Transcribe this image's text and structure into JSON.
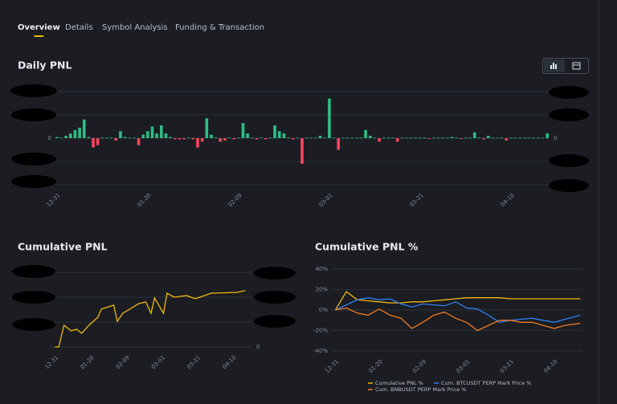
{
  "tabs": [
    "Overview",
    "Details",
    "Symbol Analysis",
    "Funding & Transaction"
  ],
  "active_tab": 0,
  "daily_pnl": {
    "type": "bar",
    "title": "Daily PNL",
    "color_up": "#2ebd85",
    "color_down": "#f6465d",
    "ylim": [
      -2,
      2
    ],
    "yticks": [
      0
    ],
    "categories": [
      "12-31",
      null,
      null,
      null,
      null,
      null,
      null,
      null,
      null,
      null,
      null,
      null,
      null,
      null,
      null,
      null,
      null,
      null,
      null,
      null,
      "01-20",
      null,
      null,
      null,
      null,
      null,
      null,
      null,
      null,
      null,
      null,
      null,
      null,
      null,
      null,
      null,
      null,
      null,
      null,
      null,
      "02-09",
      null,
      null,
      null,
      null,
      null,
      null,
      null,
      null,
      null,
      null,
      null,
      null,
      null,
      null,
      null,
      null,
      null,
      null,
      null,
      "03-01",
      null,
      null,
      null,
      null,
      null,
      null,
      null,
      null,
      null,
      null,
      null,
      null,
      null,
      null,
      null,
      null,
      null,
      null,
      null,
      "03-21",
      null,
      null,
      null,
      null,
      null,
      null,
      null,
      null,
      null,
      null,
      null,
      null,
      null,
      null,
      null,
      null,
      null,
      null,
      null,
      "04-10",
      null,
      null,
      null,
      null,
      null,
      null,
      null,
      null
    ],
    "values": [
      0.05,
      0.02,
      0.1,
      0.2,
      0.35,
      0.45,
      0.8,
      0.05,
      -0.4,
      -0.3,
      0.02,
      0.02,
      0.02,
      -0.1,
      0.3,
      0.05,
      0.02,
      0.02,
      -0.3,
      0.15,
      0.3,
      0.5,
      0.2,
      0.55,
      0.2,
      0.05,
      -0.05,
      -0.05,
      -0.05,
      0.02,
      -0.05,
      -0.4,
      -0.15,
      0.85,
      0.15,
      0.02,
      -0.15,
      -0.1,
      0.02,
      -0.05,
      0.02,
      0.65,
      0.2,
      0.02,
      -0.05,
      0.02,
      -0.05,
      0.02,
      0.55,
      0.3,
      0.2,
      0.02,
      -0.05,
      0.02,
      -1.1,
      0.02,
      0.02,
      0.02,
      0.1,
      0.02,
      1.7,
      0.02,
      -0.5,
      0.02,
      0.02,
      0.02,
      0.02,
      0.02,
      0.35,
      0.1,
      0.02,
      -0.15,
      0.02,
      0.02,
      0.02,
      -0.15,
      0.02,
      0.02,
      0.02,
      0.02,
      0.02,
      0.02,
      -0.03,
      0.02,
      0.02,
      0.02,
      0.02,
      0.05,
      0.02,
      -0.03,
      0.02,
      0.02,
      0.25,
      0.02,
      -0.05,
      0.1,
      0.02,
      0.02,
      0.02,
      -0.1,
      0.02,
      0.02,
      0.02,
      0.02,
      0.02,
      0.02,
      0.02,
      0.02,
      0.2
    ]
  },
  "cumulative_pnl": {
    "type": "line",
    "title": "Cumulative PNL",
    "xlim": [
      "12-28",
      "04-21"
    ],
    "xticks": [
      "12-31",
      "01-20",
      "02-09",
      "03-01",
      "03-21",
      "04-10"
    ],
    "ylim": [
      0,
      3
    ],
    "yticks": [
      0
    ],
    "x": [
      "12-31",
      "01-02",
      "01-05",
      "01-09",
      "01-12",
      "01-15",
      "01-19",
      "01-24",
      "01-26",
      "02-02",
      "02-04",
      "02-07",
      "02-11",
      "02-16",
      "02-20",
      "02-23",
      "02-25",
      "03-02",
      "03-04",
      "03-08",
      "03-15",
      "03-20",
      "03-29",
      "04-12",
      "04-17"
    ],
    "series": [
      {
        "color": "#f0b90b",
        "values": [
          0,
          0,
          0.87,
          0.65,
          0.71,
          0.55,
          0.87,
          1.19,
          1.52,
          1.68,
          1.03,
          1.35,
          1.52,
          1.74,
          1.81,
          1.35,
          1.97,
          1.35,
          2.16,
          2.0,
          2.06,
          1.94,
          2.16,
          2.19,
          2.26
        ]
      }
    ]
  },
  "cumulative_pnl_pct": {
    "type": "line",
    "title": "Cumulative PNL %",
    "xlim": [
      "12-29",
      "04-23"
    ],
    "xticks": [
      "12-31",
      "01-20",
      "02-09",
      "03-01",
      "03-21",
      "04-10"
    ],
    "ylim": [
      -40,
      40
    ],
    "yticks": [
      {
        "value": 40,
        "label": "40%"
      },
      {
        "value": 20,
        "label": "20%"
      },
      {
        "value": 0,
        "label": "0%"
      },
      {
        "value": -20,
        "label": "-20%"
      },
      {
        "value": -40,
        "label": "-40%"
      }
    ],
    "x": [
      "12-31",
      "01-05",
      "01-10",
      "01-15",
      "01-20",
      "01-25",
      "01-30",
      "02-04",
      "02-09",
      "02-14",
      "02-19",
      "02-24",
      "03-01",
      "03-06",
      "03-11",
      "03-16",
      "03-21",
      "03-26",
      "03-31",
      "04-05",
      "04-10",
      "04-15",
      "04-22"
    ],
    "series": [
      {
        "name": "Cumulative PNL %",
        "color": "#f0b90b",
        "values": [
          0,
          18,
          10,
          9,
          8,
          7,
          7,
          8,
          8,
          9,
          10,
          11,
          12,
          12,
          12,
          12,
          11,
          11,
          11,
          11,
          11,
          11,
          11
        ]
      },
      {
        "name": "Cum. BTCUSDT PERP Mark Price %",
        "color": "#2f7ff0",
        "values": [
          0,
          5,
          10,
          12,
          10,
          11,
          6,
          3,
          6,
          5,
          4,
          8,
          2,
          1,
          -5,
          -12,
          -10,
          -9,
          -8,
          -10,
          -12,
          -9,
          -5
        ]
      },
      {
        "name": "Cum. BNBUSDT PERP Mark Price %",
        "color": "#f07a1e",
        "values": [
          0,
          2,
          -3,
          -5,
          1,
          -5,
          -8,
          -18,
          -12,
          -5,
          -2,
          -8,
          -12,
          -20,
          -15,
          -10,
          -10,
          -12,
          -12,
          -15,
          -18,
          -15,
          -13
        ]
      }
    ]
  }
}
